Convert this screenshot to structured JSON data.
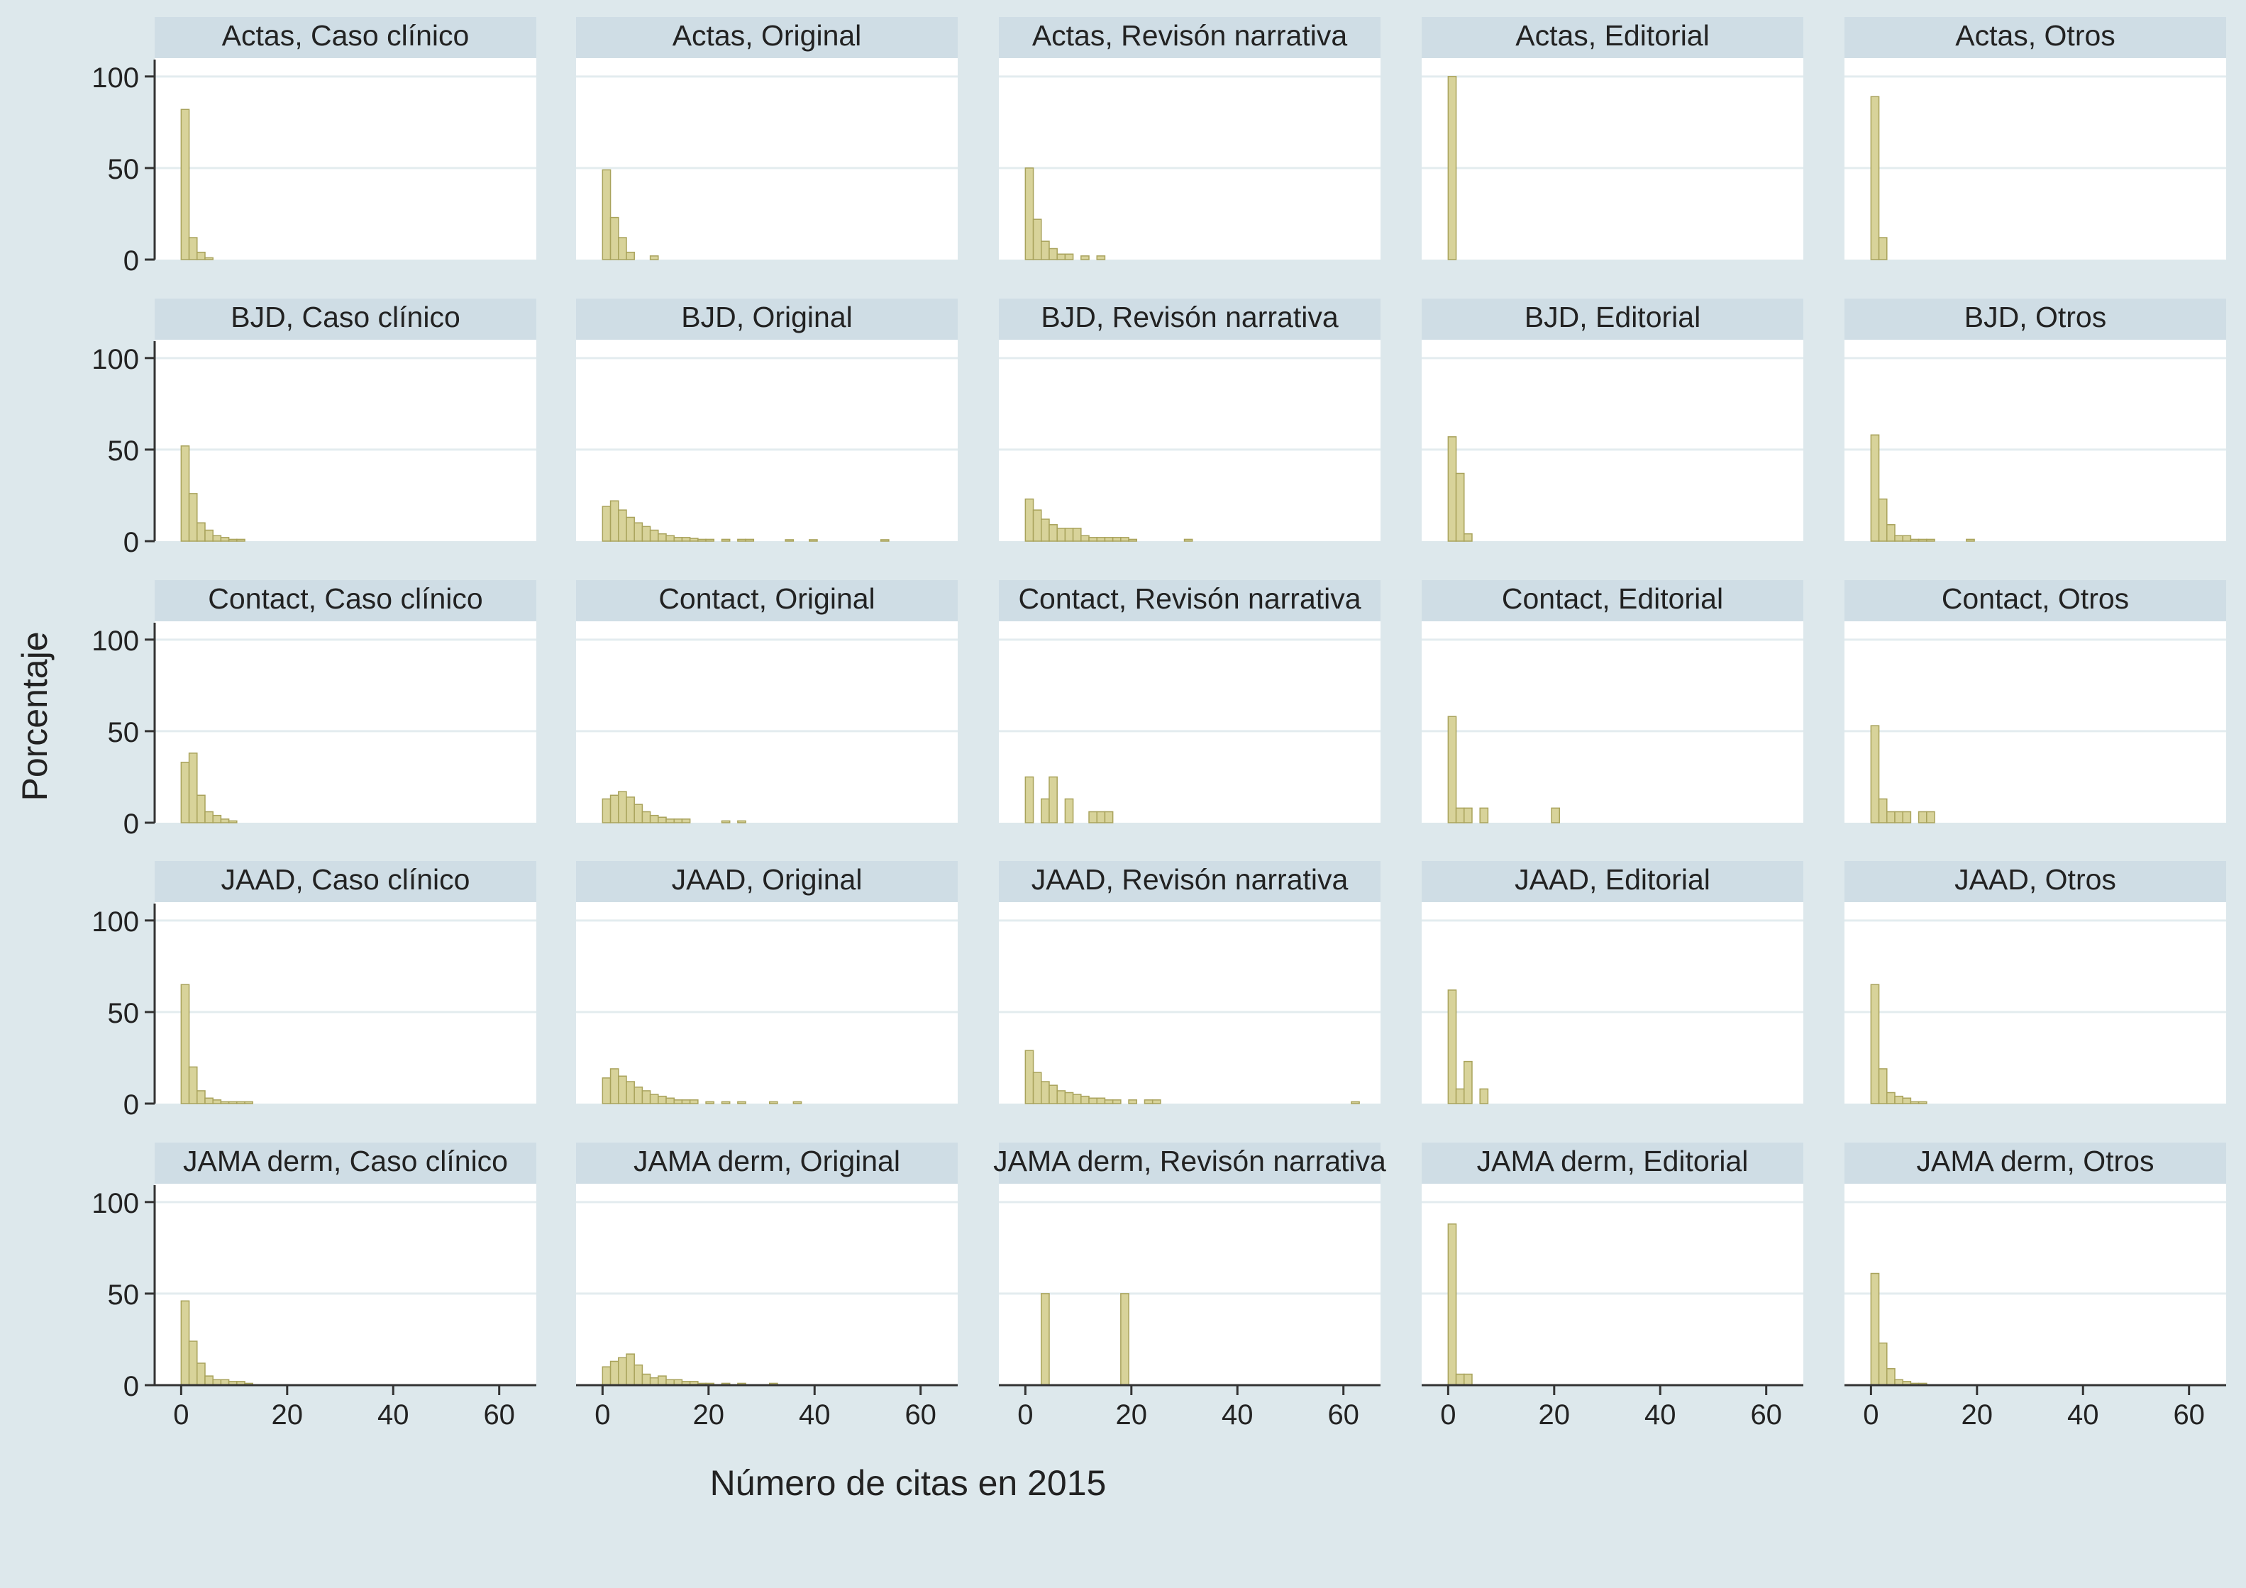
{
  "colors": {
    "background": "#dde8ec",
    "plot_background": "#ffffff",
    "panel_header": "#cfdde5",
    "grid": "#e3ecef",
    "bar_fill": "#d8d39a",
    "bar_stroke": "#a9a35c",
    "axis": "#333333",
    "text": "#222222"
  },
  "chart_data": {
    "type": "bar",
    "subtype": "histogram-small-multiples",
    "xlabel": "Número de citas en 2015",
    "ylabel": "Porcentaje",
    "xlim": [
      -5,
      67
    ],
    "ylim": [
      0,
      110
    ],
    "xticks": [
      0,
      20,
      40,
      60
    ],
    "yticks": [
      0,
      50,
      100
    ],
    "bin_width": 1.5,
    "grid": true,
    "journals": [
      "Actas",
      "BJD",
      "Contact",
      "JAAD",
      "JAMA derm"
    ],
    "article_types": [
      "Caso clínico",
      "Original",
      "Revisón narrativa",
      "Editorial",
      "Otros"
    ],
    "panels": [
      {
        "title": "Actas, Caso clínico",
        "bins": [
          [
            0,
            82
          ],
          [
            1.5,
            12
          ],
          [
            3,
            4
          ],
          [
            4.5,
            1
          ]
        ]
      },
      {
        "title": "Actas, Original",
        "bins": [
          [
            0,
            49
          ],
          [
            1.5,
            23
          ],
          [
            3,
            12
          ],
          [
            4.5,
            4
          ],
          [
            9,
            2
          ]
        ]
      },
      {
        "title": "Actas, Revisón narrativa",
        "bins": [
          [
            0,
            50
          ],
          [
            1.5,
            22
          ],
          [
            3,
            10
          ],
          [
            4.5,
            6
          ],
          [
            6,
            3
          ],
          [
            7.5,
            3
          ],
          [
            10.5,
            2
          ],
          [
            13.5,
            2
          ]
        ]
      },
      {
        "title": "Actas, Editorial",
        "bins": [
          [
            0,
            100
          ]
        ]
      },
      {
        "title": "Actas, Otros",
        "bins": [
          [
            0,
            89
          ],
          [
            1.5,
            12
          ]
        ]
      },
      {
        "title": "BJD, Caso clínico",
        "bins": [
          [
            0,
            52
          ],
          [
            1.5,
            26
          ],
          [
            3,
            10
          ],
          [
            4.5,
            6
          ],
          [
            6,
            3
          ],
          [
            7.5,
            2
          ],
          [
            9,
            1
          ],
          [
            10.5,
            1
          ]
        ]
      },
      {
        "title": "BJD, Original",
        "bins": [
          [
            0,
            19
          ],
          [
            1.5,
            22
          ],
          [
            3,
            17
          ],
          [
            4.5,
            13
          ],
          [
            6,
            10
          ],
          [
            7.5,
            8
          ],
          [
            9,
            6
          ],
          [
            10.5,
            4
          ],
          [
            12,
            3
          ],
          [
            13.5,
            2
          ],
          [
            15,
            2
          ],
          [
            16.5,
            1.5
          ],
          [
            18,
            1
          ],
          [
            19.5,
            1
          ],
          [
            22.5,
            1
          ],
          [
            25.5,
            1
          ],
          [
            27,
            1
          ],
          [
            34.5,
            0.8
          ],
          [
            39,
            0.8
          ],
          [
            52.5,
            0.8
          ]
        ]
      },
      {
        "title": "BJD, Revisón narrativa",
        "bins": [
          [
            0,
            23
          ],
          [
            1.5,
            17
          ],
          [
            3,
            12
          ],
          [
            4.5,
            9
          ],
          [
            6,
            7
          ],
          [
            7.5,
            7
          ],
          [
            9,
            7
          ],
          [
            10.5,
            3
          ],
          [
            12,
            2
          ],
          [
            13.5,
            2
          ],
          [
            15,
            2
          ],
          [
            16.5,
            2
          ],
          [
            18,
            2
          ],
          [
            19.5,
            1
          ],
          [
            30,
            1
          ]
        ]
      },
      {
        "title": "BJD, Editorial",
        "bins": [
          [
            0,
            57
          ],
          [
            1.5,
            37
          ],
          [
            3,
            4
          ]
        ]
      },
      {
        "title": "BJD, Otros",
        "bins": [
          [
            0,
            58
          ],
          [
            1.5,
            23
          ],
          [
            3,
            9
          ],
          [
            4.5,
            3
          ],
          [
            6,
            3
          ],
          [
            7.5,
            1
          ],
          [
            9,
            1
          ],
          [
            10.5,
            1
          ],
          [
            18,
            1
          ]
        ]
      },
      {
        "title": "Contact, Caso clínico",
        "bins": [
          [
            0,
            33
          ],
          [
            1.5,
            38
          ],
          [
            3,
            15
          ],
          [
            4.5,
            6
          ],
          [
            6,
            4
          ],
          [
            7.5,
            2
          ],
          [
            9,
            1
          ]
        ]
      },
      {
        "title": "Contact, Original",
        "bins": [
          [
            0,
            13
          ],
          [
            1.5,
            15
          ],
          [
            3,
            17
          ],
          [
            4.5,
            14
          ],
          [
            6,
            10
          ],
          [
            7.5,
            6
          ],
          [
            9,
            4
          ],
          [
            10.5,
            3
          ],
          [
            12,
            2
          ],
          [
            13.5,
            2
          ],
          [
            15,
            2
          ],
          [
            22.5,
            1
          ],
          [
            25.5,
            1
          ]
        ]
      },
      {
        "title": "Contact, Revisón narrativa",
        "bins": [
          [
            0,
            25
          ],
          [
            3,
            13
          ],
          [
            4.5,
            25
          ],
          [
            7.5,
            13
          ],
          [
            12,
            6
          ],
          [
            13.5,
            6
          ],
          [
            15,
            6
          ]
        ]
      },
      {
        "title": "Contact, Editorial",
        "bins": [
          [
            0,
            58
          ],
          [
            1.5,
            8
          ],
          [
            3,
            8
          ],
          [
            6,
            8
          ],
          [
            19.5,
            8
          ]
        ]
      },
      {
        "title": "Contact, Otros",
        "bins": [
          [
            0,
            53
          ],
          [
            1.5,
            13
          ],
          [
            3,
            6
          ],
          [
            4.5,
            6
          ],
          [
            6,
            6
          ],
          [
            9,
            6
          ],
          [
            10.5,
            6
          ]
        ]
      },
      {
        "title": "JAAD, Caso clínico",
        "bins": [
          [
            0,
            65
          ],
          [
            1.5,
            20
          ],
          [
            3,
            7
          ],
          [
            4.5,
            3
          ],
          [
            6,
            2
          ],
          [
            7.5,
            1
          ],
          [
            9,
            1
          ],
          [
            10.5,
            1
          ],
          [
            12,
            1
          ]
        ]
      },
      {
        "title": "JAAD, Original",
        "bins": [
          [
            0,
            14
          ],
          [
            1.5,
            19
          ],
          [
            3,
            15
          ],
          [
            4.5,
            12
          ],
          [
            6,
            9
          ],
          [
            7.5,
            7
          ],
          [
            9,
            5
          ],
          [
            10.5,
            4
          ],
          [
            12,
            3
          ],
          [
            13.5,
            2
          ],
          [
            15,
            2
          ],
          [
            16.5,
            2
          ],
          [
            19.5,
            1
          ],
          [
            22.5,
            1
          ],
          [
            25.5,
            1
          ],
          [
            31.5,
            1
          ],
          [
            36,
            1
          ]
        ]
      },
      {
        "title": "JAAD, Revisón narrativa",
        "bins": [
          [
            0,
            29
          ],
          [
            1.5,
            17
          ],
          [
            3,
            12
          ],
          [
            4.5,
            10
          ],
          [
            6,
            7
          ],
          [
            7.5,
            6
          ],
          [
            9,
            5
          ],
          [
            10.5,
            4
          ],
          [
            12,
            3
          ],
          [
            13.5,
            3
          ],
          [
            15,
            2
          ],
          [
            16.5,
            2
          ],
          [
            19.5,
            2
          ],
          [
            22.5,
            2
          ],
          [
            24,
            2
          ],
          [
            61.5,
            1
          ]
        ]
      },
      {
        "title": "JAAD, Editorial",
        "bins": [
          [
            0,
            62
          ],
          [
            1.5,
            8
          ],
          [
            3,
            23
          ],
          [
            6,
            8
          ]
        ]
      },
      {
        "title": "JAAD, Otros",
        "bins": [
          [
            0,
            65
          ],
          [
            1.5,
            19
          ],
          [
            3,
            6
          ],
          [
            4.5,
            4
          ],
          [
            6,
            3
          ],
          [
            7.5,
            1
          ],
          [
            9,
            1
          ]
        ]
      },
      {
        "title": "JAMA derm, Caso clínico",
        "bins": [
          [
            0,
            46
          ],
          [
            1.5,
            24
          ],
          [
            3,
            12
          ],
          [
            4.5,
            5
          ],
          [
            6,
            3
          ],
          [
            7.5,
            3
          ],
          [
            9,
            2
          ],
          [
            10.5,
            2
          ],
          [
            12,
            1
          ]
        ]
      },
      {
        "title": "JAMA derm, Original",
        "bins": [
          [
            0,
            10
          ],
          [
            1.5,
            13
          ],
          [
            3,
            15
          ],
          [
            4.5,
            17
          ],
          [
            6,
            11
          ],
          [
            7.5,
            6
          ],
          [
            9,
            4
          ],
          [
            10.5,
            5
          ],
          [
            12,
            3
          ],
          [
            13.5,
            3
          ],
          [
            15,
            2
          ],
          [
            16.5,
            2
          ],
          [
            18,
            1
          ],
          [
            19.5,
            1
          ],
          [
            22.5,
            1
          ],
          [
            25.5,
            1
          ],
          [
            31.5,
            1
          ]
        ]
      },
      {
        "title": "JAMA derm, Revisón narrativa",
        "bins": [
          [
            3,
            50
          ],
          [
            18,
            50
          ]
        ]
      },
      {
        "title": "JAMA derm, Editorial",
        "bins": [
          [
            0,
            88
          ],
          [
            1.5,
            6
          ],
          [
            3,
            6
          ]
        ]
      },
      {
        "title": "JAMA derm, Otros",
        "bins": [
          [
            0,
            61
          ],
          [
            1.5,
            23
          ],
          [
            3,
            9
          ],
          [
            4.5,
            3
          ],
          [
            6,
            2
          ],
          [
            7.5,
            1
          ],
          [
            9,
            1
          ]
        ]
      }
    ]
  }
}
